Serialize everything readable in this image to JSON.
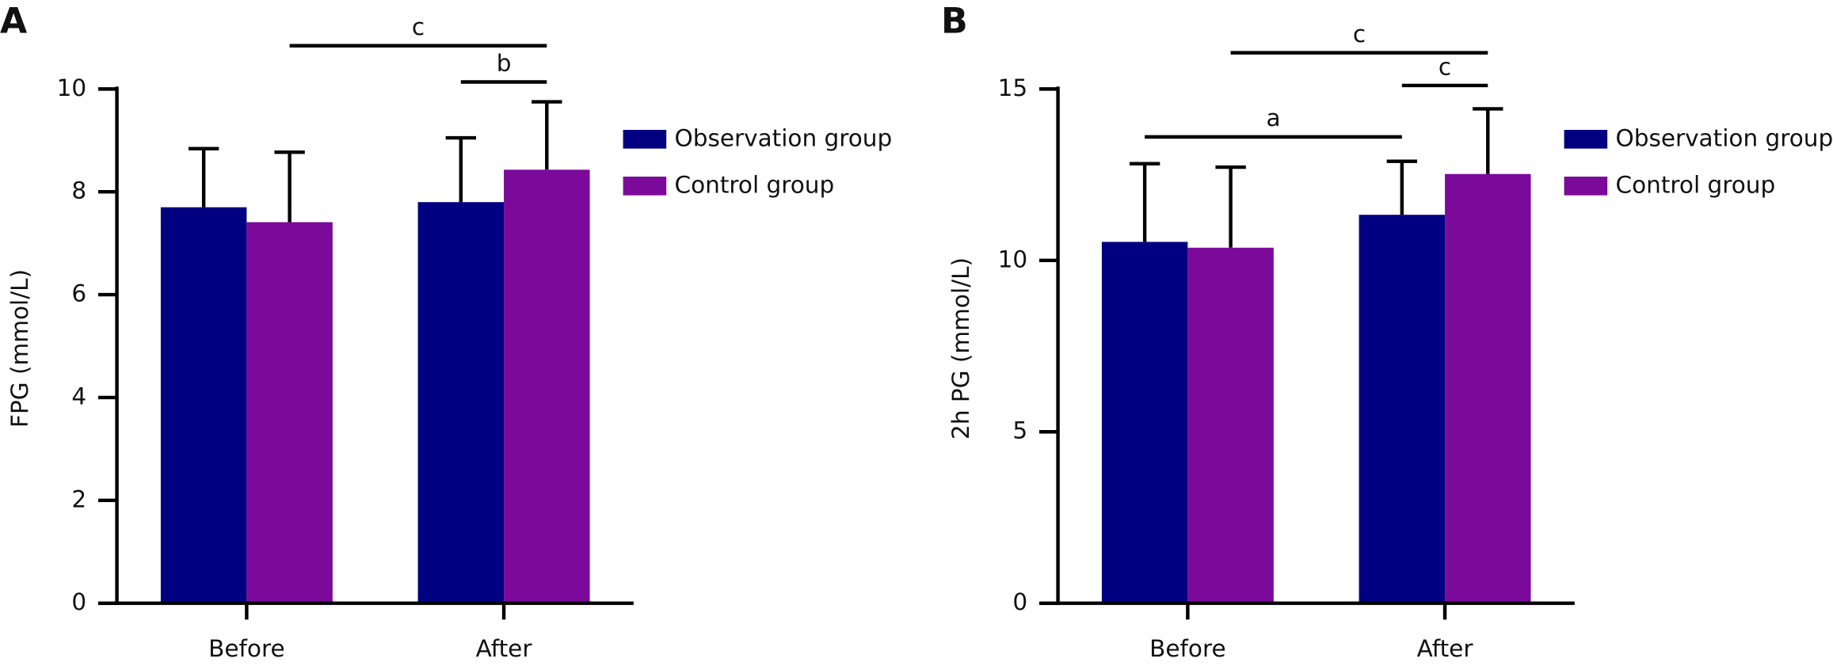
{
  "chart_data": [
    {
      "type": "bar",
      "panel_label": "A",
      "ylabel": "FPG (mmol/L)",
      "categories": [
        "Before",
        "After"
      ],
      "series": [
        {
          "name": "Observation group",
          "color": "#000080",
          "values": [
            7.7,
            7.8
          ],
          "errors": [
            1.14,
            1.25
          ]
        },
        {
          "name": "Control group",
          "color": "#7b0a9b",
          "values": [
            7.41,
            8.43
          ],
          "errors": [
            1.36,
            1.32
          ]
        }
      ],
      "ylim": [
        0,
        10
      ],
      "yticks": [
        0,
        2,
        4,
        6,
        8,
        10
      ],
      "annotations": [
        {
          "label": "c"
        },
        {
          "label": "b"
        }
      ]
    },
    {
      "type": "bar",
      "panel_label": "B",
      "ylabel": "2h PG (mmol/L)",
      "categories": [
        "Before",
        "After"
      ],
      "series": [
        {
          "name": "Observation group",
          "color": "#000080",
          "values": [
            10.54,
            11.33
          ],
          "errors": [
            2.28,
            1.56
          ]
        },
        {
          "name": "Control group",
          "color": "#7b0a9b",
          "values": [
            10.37,
            12.52
          ],
          "errors": [
            2.35,
            1.9
          ]
        }
      ],
      "ylim": [
        0,
        15
      ],
      "yticks": [
        0,
        5,
        10,
        15
      ],
      "annotations": [
        {
          "label": "c"
        },
        {
          "label": "c"
        },
        {
          "label": "a"
        }
      ]
    }
  ]
}
